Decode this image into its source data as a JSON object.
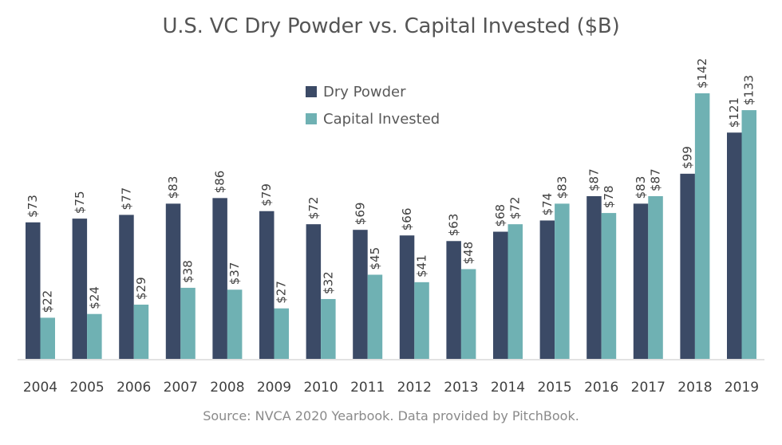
{
  "chart_data": {
    "type": "bar",
    "title": "U.S. VC Dry Powder vs. Capital Invested ($B)",
    "xlabel": "",
    "ylabel": "",
    "ylim": [
      0,
      150
    ],
    "grid": false,
    "legend_position": "top-center",
    "categories": [
      "2004",
      "2005",
      "2006",
      "2007",
      "2008",
      "2009",
      "2010",
      "2011",
      "2012",
      "2013",
      "2014",
      "2015",
      "2016",
      "2017",
      "2018",
      "2019"
    ],
    "series": [
      {
        "name": "Dry Powder",
        "color": "#3b4a66",
        "values": [
          73,
          75,
          77,
          83,
          86,
          79,
          72,
          69,
          66,
          63,
          68,
          74,
          87,
          83,
          99,
          121
        ],
        "labels": [
          "$73",
          "$75",
          "$77",
          "$83",
          "$86",
          "$79",
          "$72",
          "$69",
          "$66",
          "$63",
          "$68",
          "$74",
          "$87",
          "$83",
          "$99",
          "$121"
        ]
      },
      {
        "name": "Capital Invested",
        "color": "#6fb1b3",
        "values": [
          22,
          24,
          29,
          38,
          37,
          27,
          32,
          45,
          41,
          48,
          72,
          83,
          78,
          87,
          142,
          133
        ],
        "labels": [
          "$22",
          "$24",
          "$29",
          "$38",
          "$37",
          "$27",
          "$32",
          "$45",
          "$41",
          "$48",
          "$72",
          "$83",
          "$78",
          "$87",
          "$142",
          "$133"
        ]
      }
    ],
    "source": "Source: NVCA 2020 Yearbook. Data provided by PitchBook."
  }
}
